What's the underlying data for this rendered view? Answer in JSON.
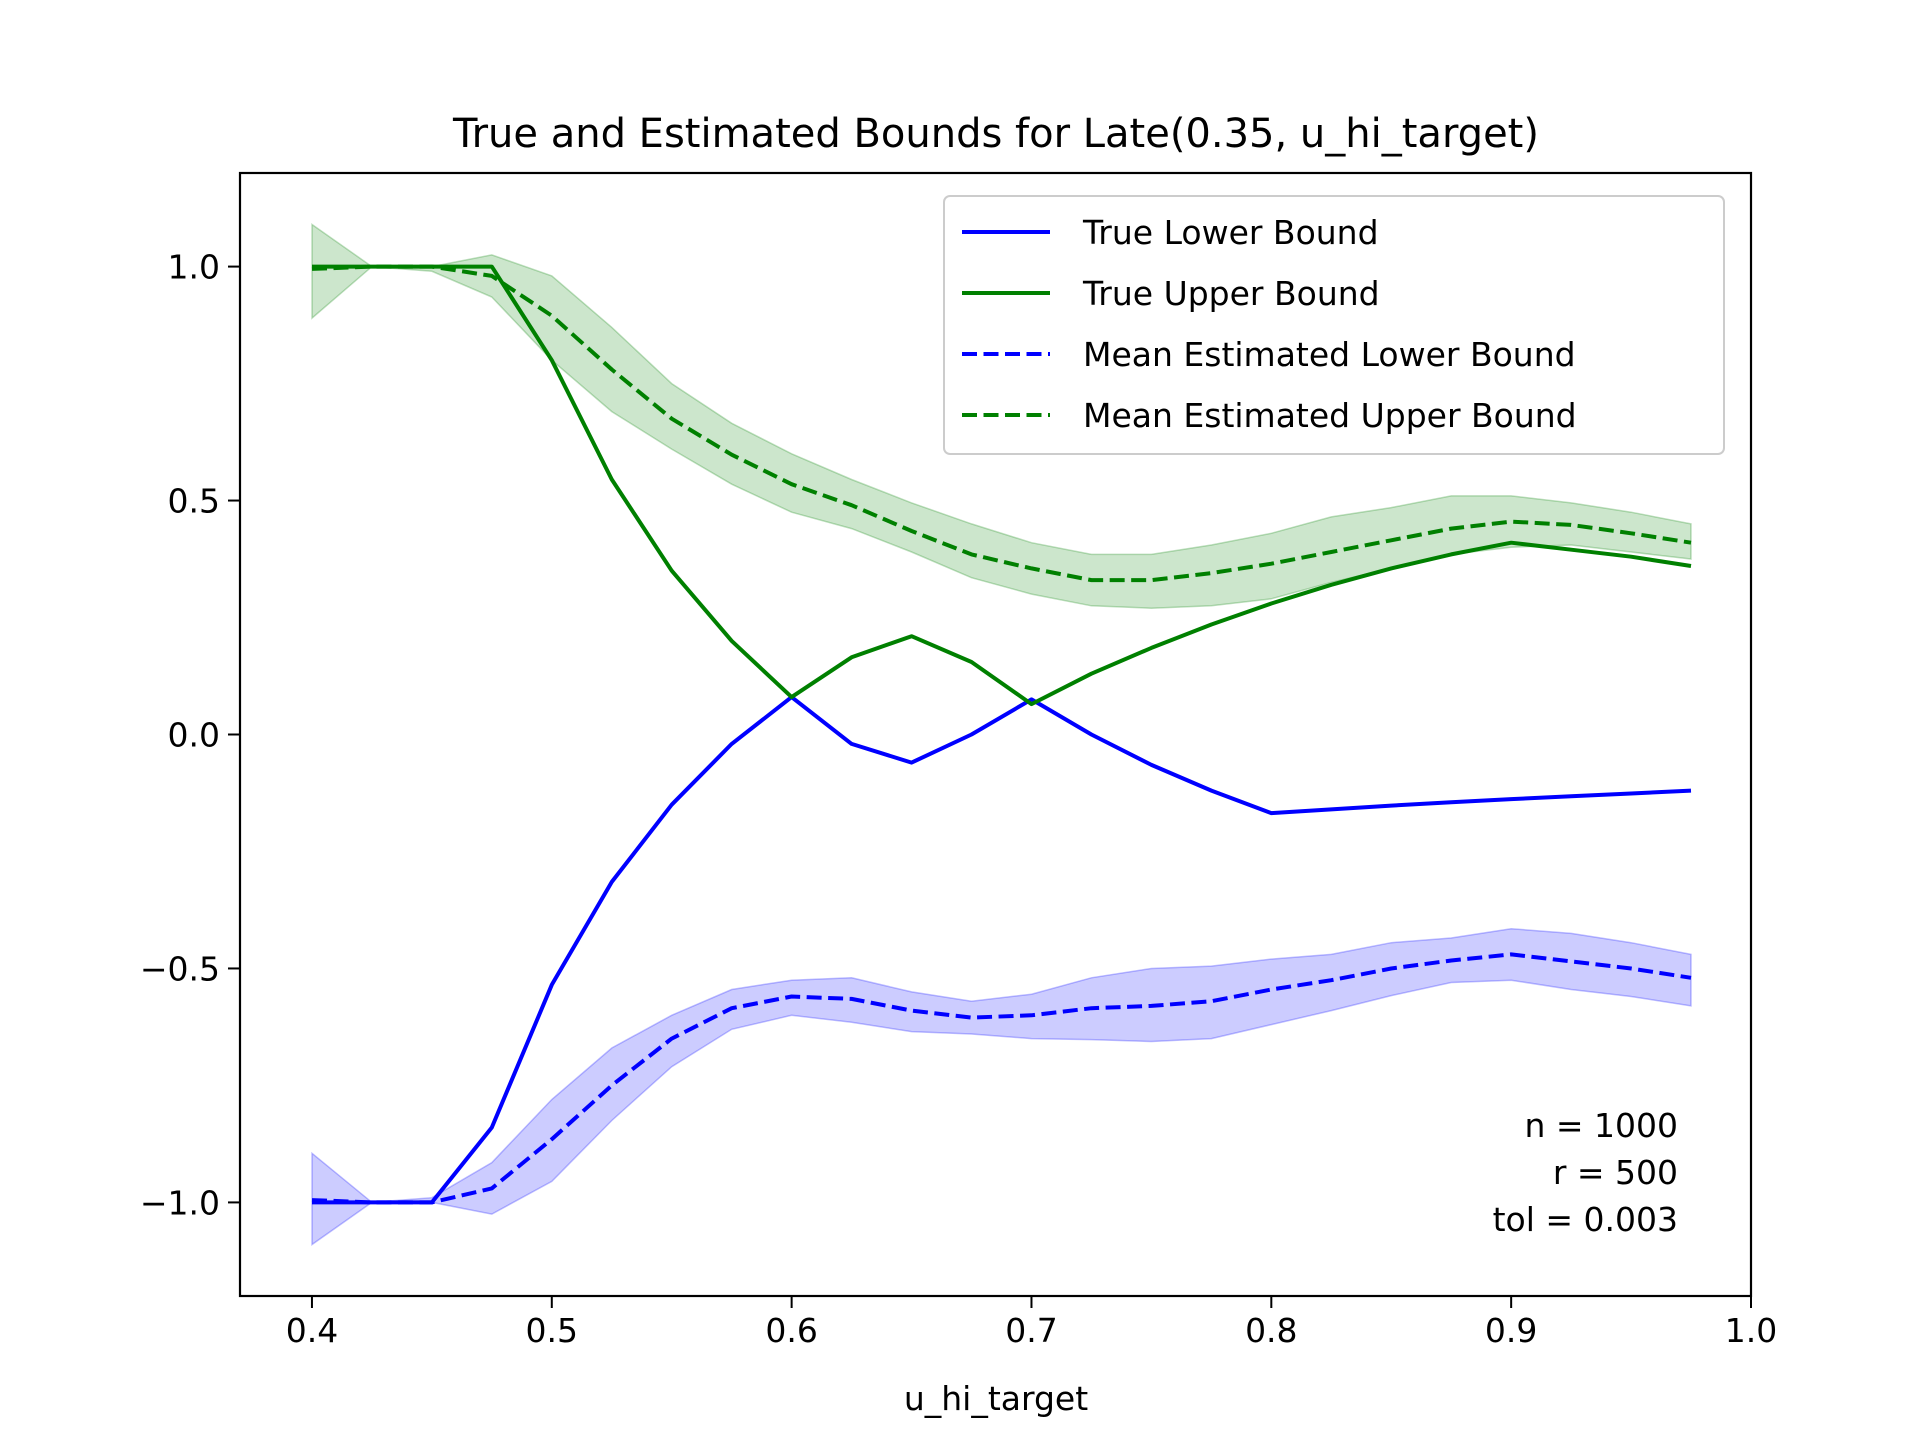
{
  "chart_data": {
    "type": "line",
    "title": "True and Estimated Bounds for Late(0.35, u_hi_target)",
    "xlabel": "u_hi_target",
    "ylabel": "",
    "xlim": [
      0.37,
      1.0
    ],
    "ylim": [
      -1.2,
      1.2
    ],
    "xticks": [
      0.4,
      0.5,
      0.6,
      0.7,
      0.8,
      0.9,
      1.0
    ],
    "xtick_labels": [
      "0.4",
      "0.5",
      "0.6",
      "0.7",
      "0.8",
      "0.9",
      "1.0"
    ],
    "yticks": [
      -1.0,
      -0.5,
      0.0,
      0.5,
      1.0
    ],
    "ytick_labels": [
      "−1.0",
      "−0.5",
      "0.0",
      "0.5",
      "1.0"
    ],
    "grid": false,
    "legend_position": "top-right",
    "x": [
      0.4,
      0.425,
      0.45,
      0.475,
      0.5,
      0.525,
      0.55,
      0.575,
      0.6,
      0.625,
      0.65,
      0.675,
      0.7,
      0.725,
      0.75,
      0.775,
      0.8,
      0.825,
      0.85,
      0.875,
      0.9,
      0.925,
      0.95,
      0.975
    ],
    "series": [
      {
        "name": "True Lower Bound",
        "color": "#0000ff",
        "style": "solid",
        "values": [
          -1.0,
          -1.0,
          -1.0,
          -0.84,
          -0.535,
          -0.315,
          -0.15,
          -0.02,
          0.08,
          -0.02,
          -0.06,
          -0.0,
          0.075,
          -0.0,
          -0.065,
          -0.12,
          -0.168,
          -0.16,
          -0.152,
          -0.145,
          -0.138,
          -0.132,
          -0.126,
          -0.12
        ]
      },
      {
        "name": "True Upper Bound",
        "color": "#008000",
        "style": "solid",
        "values": [
          1.0,
          1.0,
          1.0,
          1.0,
          0.8,
          0.545,
          0.35,
          0.2,
          0.08,
          0.165,
          0.21,
          0.155,
          0.065,
          0.13,
          0.185,
          0.235,
          0.28,
          0.32,
          0.355,
          0.385,
          0.41,
          0.395,
          0.38,
          0.36
        ]
      },
      {
        "name": "Mean Estimated Lower Bound",
        "color": "#0000ff",
        "style": "dashed",
        "values": [
          -0.995,
          -1.0,
          -1.0,
          -0.97,
          -0.865,
          -0.75,
          -0.65,
          -0.585,
          -0.56,
          -0.565,
          -0.59,
          -0.605,
          -0.6,
          -0.585,
          -0.58,
          -0.57,
          -0.545,
          -0.525,
          -0.5,
          -0.483,
          -0.47,
          -0.485,
          -0.5,
          -0.52
        ],
        "band_lower": [
          -1.09,
          -1.0,
          -1.0,
          -1.025,
          -0.955,
          -0.825,
          -0.71,
          -0.63,
          -0.6,
          -0.615,
          -0.635,
          -0.64,
          -0.65,
          -0.652,
          -0.656,
          -0.65,
          -0.62,
          -0.59,
          -0.558,
          -0.53,
          -0.525,
          -0.545,
          -0.56,
          -0.58
        ],
        "band_upper": [
          -0.895,
          -1.0,
          -0.99,
          -0.915,
          -0.78,
          -0.67,
          -0.6,
          -0.545,
          -0.525,
          -0.52,
          -0.55,
          -0.57,
          -0.555,
          -0.52,
          -0.5,
          -0.495,
          -0.48,
          -0.47,
          -0.445,
          -0.435,
          -0.415,
          -0.425,
          -0.445,
          -0.47
        ],
        "band_color": "#0000ff"
      },
      {
        "name": "Mean Estimated Upper Bound",
        "color": "#008000",
        "style": "dashed",
        "values": [
          0.995,
          1.0,
          1.0,
          0.98,
          0.895,
          0.78,
          0.675,
          0.598,
          0.535,
          0.49,
          0.435,
          0.385,
          0.355,
          0.33,
          0.33,
          0.345,
          0.365,
          0.39,
          0.415,
          0.44,
          0.455,
          0.448,
          0.43,
          0.41
        ],
        "band_lower": [
          0.89,
          1.0,
          0.99,
          0.935,
          0.8,
          0.69,
          0.61,
          0.535,
          0.475,
          0.44,
          0.39,
          0.335,
          0.3,
          0.275,
          0.27,
          0.275,
          0.29,
          0.325,
          0.355,
          0.385,
          0.4,
          0.405,
          0.39,
          0.375
        ],
        "band_upper": [
          1.09,
          1.0,
          1.0,
          1.025,
          0.98,
          0.87,
          0.75,
          0.665,
          0.6,
          0.545,
          0.495,
          0.45,
          0.41,
          0.385,
          0.385,
          0.405,
          0.43,
          0.465,
          0.485,
          0.51,
          0.51,
          0.495,
          0.475,
          0.45
        ],
        "band_color": "#008000"
      }
    ],
    "annotations": [
      "n = 1000",
      "r = 500",
      "tol = 0.003"
    ]
  }
}
